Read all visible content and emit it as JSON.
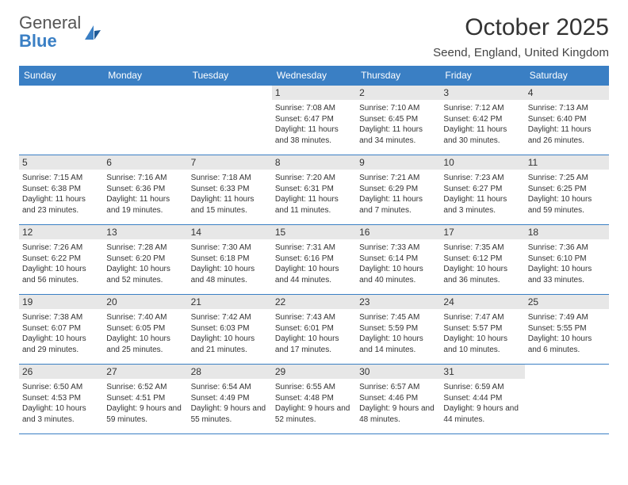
{
  "logo": {
    "text1": "General",
    "text2": "Blue"
  },
  "title": "October 2025",
  "location": "Seend, England, United Kingdom",
  "colors": {
    "header_bg": "#3a7fc4",
    "header_text": "#ffffff",
    "daynum_bg": "#e7e7e7",
    "border": "#3a7fc4",
    "body_text": "#333333",
    "page_bg": "#ffffff"
  },
  "typography": {
    "title_fontsize": 30,
    "location_fontsize": 15,
    "header_fontsize": 12,
    "daynum_fontsize": 12,
    "body_fontsize": 10
  },
  "weekdays": [
    "Sunday",
    "Monday",
    "Tuesday",
    "Wednesday",
    "Thursday",
    "Friday",
    "Saturday"
  ],
  "weeks": [
    [
      null,
      null,
      null,
      {
        "n": "1",
        "sr": "7:08 AM",
        "ss": "6:47 PM",
        "dl": "11 hours and 38 minutes."
      },
      {
        "n": "2",
        "sr": "7:10 AM",
        "ss": "6:45 PM",
        "dl": "11 hours and 34 minutes."
      },
      {
        "n": "3",
        "sr": "7:12 AM",
        "ss": "6:42 PM",
        "dl": "11 hours and 30 minutes."
      },
      {
        "n": "4",
        "sr": "7:13 AM",
        "ss": "6:40 PM",
        "dl": "11 hours and 26 minutes."
      }
    ],
    [
      {
        "n": "5",
        "sr": "7:15 AM",
        "ss": "6:38 PM",
        "dl": "11 hours and 23 minutes."
      },
      {
        "n": "6",
        "sr": "7:16 AM",
        "ss": "6:36 PM",
        "dl": "11 hours and 19 minutes."
      },
      {
        "n": "7",
        "sr": "7:18 AM",
        "ss": "6:33 PM",
        "dl": "11 hours and 15 minutes."
      },
      {
        "n": "8",
        "sr": "7:20 AM",
        "ss": "6:31 PM",
        "dl": "11 hours and 11 minutes."
      },
      {
        "n": "9",
        "sr": "7:21 AM",
        "ss": "6:29 PM",
        "dl": "11 hours and 7 minutes."
      },
      {
        "n": "10",
        "sr": "7:23 AM",
        "ss": "6:27 PM",
        "dl": "11 hours and 3 minutes."
      },
      {
        "n": "11",
        "sr": "7:25 AM",
        "ss": "6:25 PM",
        "dl": "10 hours and 59 minutes."
      }
    ],
    [
      {
        "n": "12",
        "sr": "7:26 AM",
        "ss": "6:22 PM",
        "dl": "10 hours and 56 minutes."
      },
      {
        "n": "13",
        "sr": "7:28 AM",
        "ss": "6:20 PM",
        "dl": "10 hours and 52 minutes."
      },
      {
        "n": "14",
        "sr": "7:30 AM",
        "ss": "6:18 PM",
        "dl": "10 hours and 48 minutes."
      },
      {
        "n": "15",
        "sr": "7:31 AM",
        "ss": "6:16 PM",
        "dl": "10 hours and 44 minutes."
      },
      {
        "n": "16",
        "sr": "7:33 AM",
        "ss": "6:14 PM",
        "dl": "10 hours and 40 minutes."
      },
      {
        "n": "17",
        "sr": "7:35 AM",
        "ss": "6:12 PM",
        "dl": "10 hours and 36 minutes."
      },
      {
        "n": "18",
        "sr": "7:36 AM",
        "ss": "6:10 PM",
        "dl": "10 hours and 33 minutes."
      }
    ],
    [
      {
        "n": "19",
        "sr": "7:38 AM",
        "ss": "6:07 PM",
        "dl": "10 hours and 29 minutes."
      },
      {
        "n": "20",
        "sr": "7:40 AM",
        "ss": "6:05 PM",
        "dl": "10 hours and 25 minutes."
      },
      {
        "n": "21",
        "sr": "7:42 AM",
        "ss": "6:03 PM",
        "dl": "10 hours and 21 minutes."
      },
      {
        "n": "22",
        "sr": "7:43 AM",
        "ss": "6:01 PM",
        "dl": "10 hours and 17 minutes."
      },
      {
        "n": "23",
        "sr": "7:45 AM",
        "ss": "5:59 PM",
        "dl": "10 hours and 14 minutes."
      },
      {
        "n": "24",
        "sr": "7:47 AM",
        "ss": "5:57 PM",
        "dl": "10 hours and 10 minutes."
      },
      {
        "n": "25",
        "sr": "7:49 AM",
        "ss": "5:55 PM",
        "dl": "10 hours and 6 minutes."
      }
    ],
    [
      {
        "n": "26",
        "sr": "6:50 AM",
        "ss": "4:53 PM",
        "dl": "10 hours and 3 minutes."
      },
      {
        "n": "27",
        "sr": "6:52 AM",
        "ss": "4:51 PM",
        "dl": "9 hours and 59 minutes."
      },
      {
        "n": "28",
        "sr": "6:54 AM",
        "ss": "4:49 PM",
        "dl": "9 hours and 55 minutes."
      },
      {
        "n": "29",
        "sr": "6:55 AM",
        "ss": "4:48 PM",
        "dl": "9 hours and 52 minutes."
      },
      {
        "n": "30",
        "sr": "6:57 AM",
        "ss": "4:46 PM",
        "dl": "9 hours and 48 minutes."
      },
      {
        "n": "31",
        "sr": "6:59 AM",
        "ss": "4:44 PM",
        "dl": "9 hours and 44 minutes."
      },
      null
    ]
  ],
  "labels": {
    "sunrise": "Sunrise:",
    "sunset": "Sunset:",
    "daylight": "Daylight:"
  }
}
